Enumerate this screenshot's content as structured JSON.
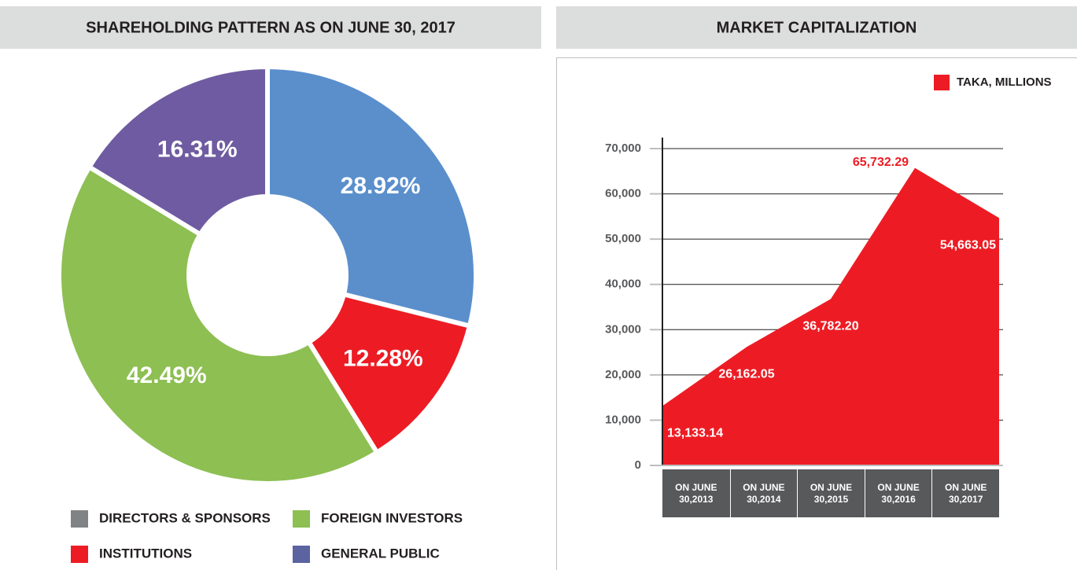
{
  "chart_data": [
    {
      "type": "donut",
      "title": "SHAREHOLDING PATTERN AS ON JUNE 30, 2017",
      "categories": [
        "DIRECTORS & SPONSORS",
        "INSTITUTIONS",
        "FOREIGN INVESTORS",
        "GENERAL PUBLIC"
      ],
      "values": [
        28.92,
        12.28,
        42.49,
        16.31
      ],
      "value_labels": [
        "28.92%",
        "12.28%",
        "42.49%",
        "16.31%"
      ],
      "colors": [
        "#5a8fcc",
        "#ed1c24",
        "#8dbf52",
        "#6f5ba1"
      ],
      "legend_colors": [
        "#808285",
        "#ed1c24",
        "#8dbf52",
        "#5b63a0"
      ]
    },
    {
      "type": "area",
      "title": "MARKET CAPITALIZATION",
      "categories": [
        "ON JUNE 30,2013",
        "ON JUNE 30,2014",
        "ON JUNE 30,2015",
        "ON JUNE 30,2016",
        "ON JUNE 30,2017"
      ],
      "series": [
        {
          "name": "TAKA, MILLIONS",
          "color": "#ed1c24",
          "values": [
            13133.14,
            26162.05,
            36782.2,
            65732.29,
            54663.05
          ],
          "value_labels": [
            "13,133.14",
            "26,162.05",
            "36,782.20",
            "65,732.29",
            "54,663.05"
          ]
        }
      ],
      "ylim": [
        0,
        70000
      ],
      "yticks": [
        0,
        {
          "value": 10000,
          "label": "10,000"
        },
        {
          "value": 20000,
          "label": "20,000"
        },
        {
          "value": 30000,
          "label": "30,000"
        },
        {
          "value": 40000,
          "label": "40,000"
        },
        {
          "value": 50000,
          "label": "50,000"
        },
        {
          "value": 60000,
          "label": "60,000"
        },
        {
          "value": 70000,
          "label": "70,000"
        }
      ],
      "grid": true,
      "legend": "top-right"
    }
  ]
}
